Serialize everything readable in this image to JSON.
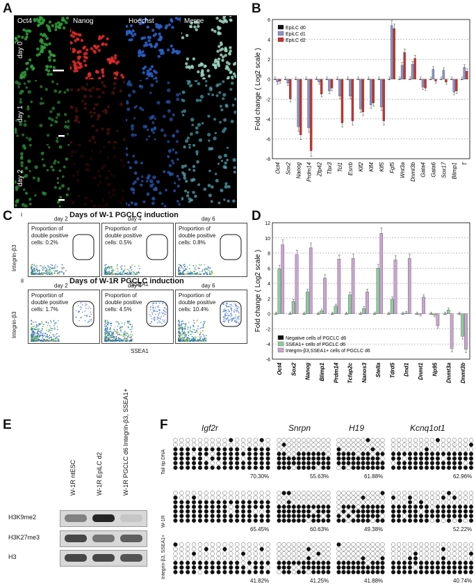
{
  "panelA": {
    "label": "A",
    "columns": [
      "Oct4",
      "Nanog",
      "Hoechst",
      "Merge"
    ],
    "rows": [
      "day 0",
      "day 1",
      "day 2"
    ]
  },
  "panelB": {
    "label": "B"
  },
  "panelC": {
    "label": "C",
    "i": {
      "num": "i",
      "title": "Days of  W-1 PGCLC induction",
      "days": [
        "day 2",
        "day 4",
        "day 6"
      ],
      "props": [
        "Proportion of double positive cells: 0.2%",
        "Proportion of double positive cells: 0.5%",
        "Proportion of double positive cells: 0.8%"
      ]
    },
    "ii": {
      "num": "ii",
      "title": "Days of  W-1R PGCLC induction",
      "days": [
        "day 2",
        "day 4",
        "day 6"
      ],
      "props": [
        "Proportion of double positive cells: 1.7%",
        "Proportion of double positive cells: 4.5%",
        "Proportion of double positive cells: 10.4%"
      ]
    },
    "xlabel": "SSEA1",
    "ylabel": "Integrin-β3",
    "xticks": [
      "0",
      "10",
      "20",
      "30",
      "40",
      "50"
    ],
    "yticks": [
      "0",
      "10",
      "20",
      "30",
      "40"
    ]
  },
  "panelD": {
    "label": "D"
  },
  "panelE": {
    "label": "E",
    "lanes": [
      "W-1R ntESC",
      "W-1R EpiLC d2",
      "W-1R PGCLC d6 Integrin-β3, SSEA1+"
    ],
    "rows": [
      "H3K9me2",
      "H3K27me3",
      "H3"
    ]
  },
  "panelF": {
    "label": "F",
    "genes": [
      "Igf2r",
      "Snrpn",
      "H19",
      "Kcnq1ot1"
    ],
    "groups": [
      "Tail tip DNA",
      "W-1R",
      "Integrin-β3, SSEA1+"
    ],
    "pcts": [
      [
        "70.30%",
        "55.63%",
        "61.88%",
        "62.96%"
      ],
      [
        "65.45%",
        "60.63%",
        "49.38%",
        "52.22%"
      ],
      [
        "41.82%",
        "41.25%",
        "41.88%",
        "40.74%"
      ]
    ]
  },
  "chart_data": [
    {
      "type": "bar",
      "id": "B",
      "ylabel": "Fold change ( Log2 scale )",
      "ylim": [
        -8,
        6
      ],
      "yticks": [
        -8,
        -6,
        -4,
        -2,
        0,
        2,
        4,
        6
      ],
      "categories": [
        "Oct4",
        "Sox2",
        "Nanog",
        "Prdm14",
        "Zfp42",
        "Tbx3",
        "Tcl1",
        "Esrrb",
        "Klf2",
        "Klf4",
        "Klf5",
        "Fgf5",
        "Wnt3a",
        "Dnmt3b",
        "Gata4",
        "Gata6",
        "Sox17",
        "Blimp1",
        "T"
      ],
      "legend": "top-left",
      "series": [
        {
          "name": "EpiLC d0",
          "color": "#111111",
          "values": [
            0,
            0,
            0,
            0,
            0,
            0,
            0,
            0,
            0,
            0,
            0,
            0,
            0,
            0,
            0,
            0,
            0,
            0,
            0
          ]
        },
        {
          "name": "EpiLC d1",
          "color": "#8c93c9",
          "values": [
            -0.3,
            -0.4,
            -4.8,
            -4.9,
            -0.3,
            -1.2,
            -1.7,
            -1.7,
            -3.0,
            -2.6,
            -2.8,
            5.4,
            1.4,
            1.5,
            -0.8,
            1.0,
            0.9,
            -1.3,
            1.2
          ]
        },
        {
          "name": "EpiLC d2",
          "color": "#c8322d",
          "values": [
            -0.2,
            -2.0,
            -5.6,
            -7.2,
            -1.5,
            -0.9,
            -4.4,
            -4.2,
            -3.3,
            -2.4,
            -4.2,
            5.1,
            2.7,
            2.1,
            -0.9,
            -0.2,
            -0.3,
            -1.2,
            0.8
          ]
        }
      ]
    },
    {
      "type": "bar",
      "id": "D",
      "ylabel": "Fold change ( Log2 scale )",
      "ylim": [
        -6,
        12
      ],
      "yticks": [
        -6,
        -4,
        -2,
        0,
        2,
        4,
        6,
        8,
        10,
        12
      ],
      "categories": [
        "Oct4",
        "Sox2",
        "Nanog",
        "Blimp1",
        "Prdm14",
        "Tcfap2c",
        "Nanos3",
        "Stella",
        "Tdrd5",
        "Dnd1",
        "Dnmt1",
        "Np95",
        "Dnmt3a",
        "Dnmt3b"
      ],
      "legend": "bottom-left",
      "series": [
        {
          "name": "Negative cells of PGCLC d6",
          "color": "#111111",
          "values": [
            0,
            0,
            0,
            0,
            0,
            0,
            0,
            0,
            0,
            0,
            0,
            0,
            0,
            0
          ]
        },
        {
          "name": "SSEA1+ cells of PGCLC d6",
          "color": "#8fcaa0",
          "values": [
            5.9,
            1.6,
            2.9,
            0.4,
            1.0,
            2.5,
            0.7,
            6.0,
            1.9,
            0.1,
            -0.1,
            -0.2,
            0.5,
            -3.0
          ]
        },
        {
          "name": "Integrin-β3,SSEA1+ cells of PGCLC d6",
          "color": "#c9a3cf",
          "values": [
            9.1,
            7.8,
            8.7,
            4.7,
            7.2,
            7.3,
            2.9,
            10.6,
            7.1,
            7.3,
            2.2,
            -1.6,
            -4.6,
            -4.7
          ]
        }
      ]
    }
  ]
}
